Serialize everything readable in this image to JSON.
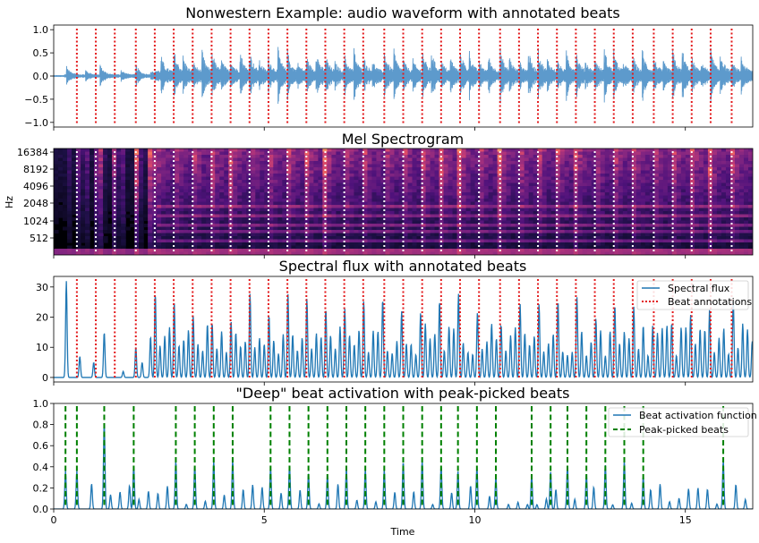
{
  "chart_data": [
    {
      "type": "line",
      "title": "Nonwestern Example: audio waveform with annotated beats",
      "xlabel": "",
      "ylabel": "",
      "xlim": [
        0,
        16.6
      ],
      "ylim": [
        -1.1,
        1.1
      ],
      "yticks": [
        "1.0",
        "0.5",
        "0.0",
        "−0.5",
        "−1.0"
      ],
      "ytick_values": [
        1.0,
        0.5,
        0.0,
        -0.5,
        -1.0
      ],
      "series": [
        {
          "kind": "waveform",
          "color": "#4b8fc6"
        },
        {
          "kind": "beat_lines",
          "color": "#e31a1c",
          "style": "dotted",
          "values": [
            0.55,
            1.0,
            1.45,
            1.95,
            2.4,
            2.85,
            3.3,
            3.75,
            4.2,
            4.65,
            5.1,
            5.55,
            6.0,
            6.45,
            6.9,
            7.35,
            7.85,
            8.3,
            8.75,
            9.2,
            9.65,
            10.1,
            10.6,
            11.05,
            11.5,
            11.95,
            12.4,
            12.85,
            13.3,
            13.75,
            14.25,
            14.7,
            15.15,
            15.6,
            16.1
          ]
        }
      ]
    },
    {
      "type": "heatmap",
      "title": "Mel Spectrogram",
      "ylabel": "Hz",
      "yticks": [
        "16384",
        "8192",
        "4096",
        "2048",
        "1024",
        "512"
      ],
      "colormap": "magma",
      "beat_lines": {
        "color": "#ffffff",
        "style": "dotted"
      }
    },
    {
      "type": "line",
      "title": "Spectral flux with annotated beats",
      "ylim": [
        -1.5,
        33.5
      ],
      "yticks": [
        "30",
        "20",
        "10",
        "0"
      ],
      "ytick_values": [
        30,
        20,
        10,
        0
      ],
      "legend": {
        "position": "top-right",
        "entries": [
          "Spectral flux",
          "Beat annotations"
        ]
      },
      "series": [
        {
          "name": "Spectral flux",
          "color": "#1f77b4",
          "style": "solid"
        },
        {
          "name": "Beat annotations",
          "color": "#e31a1c",
          "style": "dotted"
        }
      ]
    },
    {
      "type": "line",
      "title": "\"Deep\" beat activation with peak-picked beats",
      "xlabel": "Time",
      "xlim": [
        0,
        16.6
      ],
      "ylim": [
        0,
        1
      ],
      "xticks": [
        "0",
        "5",
        "10",
        "15"
      ],
      "xtick_values": [
        0,
        5,
        10,
        15
      ],
      "yticks": [
        "1.0",
        "0.8",
        "0.6",
        "0.4",
        "0.2",
        "0.0"
      ],
      "ytick_values": [
        1.0,
        0.8,
        0.6,
        0.4,
        0.2,
        0.0
      ],
      "legend": {
        "position": "top-right",
        "entries": [
          "Beat activation function",
          "Peak-picked beats"
        ]
      },
      "series": [
        {
          "name": "Beat activation function",
          "color": "#1f77b4",
          "style": "solid"
        },
        {
          "name": "Peak-picked beats",
          "color": "#008000",
          "style": "dashed",
          "values": [
            0.28,
            0.55,
            1.2,
            1.9,
            2.9,
            3.35,
            3.8,
            4.25,
            5.15,
            5.6,
            6.05,
            6.5,
            6.95,
            7.4,
            7.85,
            8.3,
            8.75,
            9.2,
            9.6,
            10.05,
            10.5,
            11.35,
            11.8,
            12.2,
            12.65,
            13.1,
            13.55,
            14.0,
            15.9
          ]
        }
      ]
    }
  ]
}
